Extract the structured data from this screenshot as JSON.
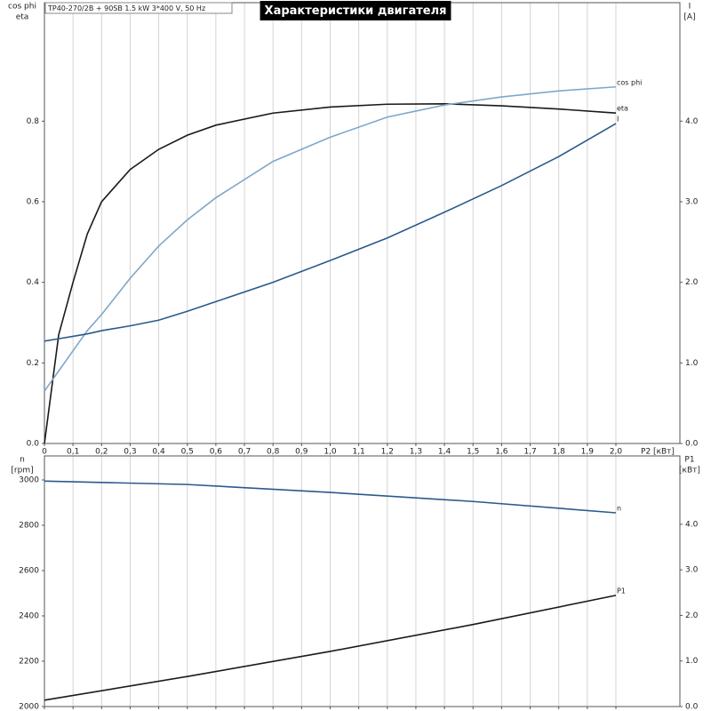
{
  "chart_data": [
    {
      "type": "line",
      "title": "Характеристики двигателя",
      "subtitle": "TP40-270/2B + 90SB   1.5 kW   3*400 V, 50 Hz",
      "xlabel": "P2 [кВт]",
      "ylabel": [
        "cos phi",
        "eta"
      ],
      "y2label": [
        "I",
        "[A]"
      ],
      "x": [
        0,
        0.05,
        0.1,
        0.15,
        0.2,
        0.3,
        0.4,
        0.5,
        0.6,
        0.8,
        1.0,
        1.2,
        1.4,
        1.6,
        1.8,
        2.0
      ],
      "series": [
        {
          "name": "eta",
          "color": "#1a1a1a",
          "values": [
            0,
            0.27,
            0.4,
            0.52,
            0.6,
            0.68,
            0.73,
            0.765,
            0.79,
            0.82,
            0.835,
            0.842,
            0.843,
            0.838,
            0.83,
            0.82
          ]
        },
        {
          "name": "cos phi",
          "color": "#7fa7c9",
          "values": [
            0.13,
            0.18,
            0.23,
            0.28,
            0.32,
            0.41,
            0.49,
            0.555,
            0.61,
            0.7,
            0.76,
            0.81,
            0.84,
            0.86,
            0.875,
            0.885
          ]
        },
        {
          "name": "I",
          "color": "#2a5a8c",
          "axis": "y2",
          "values": [
            1.27,
            1.3,
            1.33,
            1.36,
            1.4,
            1.46,
            1.53,
            1.64,
            1.76,
            2.0,
            2.27,
            2.55,
            2.87,
            3.2,
            3.56,
            3.97
          ]
        }
      ],
      "xlim": [
        0,
        2.224
      ],
      "xticks": [
        0,
        {
          "value": 0.1,
          "label": "0,1"
        },
        {
          "value": 0.2,
          "label": "0,2"
        },
        {
          "value": 0.3,
          "label": "0,3"
        },
        {
          "value": 0.4,
          "label": "0,4"
        },
        {
          "value": 0.5,
          "label": "0,5"
        },
        {
          "value": 0.6,
          "label": "0,6"
        },
        {
          "value": 0.7,
          "label": "0,7"
        },
        {
          "value": 0.8,
          "label": "0,8"
        },
        {
          "value": 0.9,
          "label": "0,9"
        },
        {
          "value": 1.0,
          "label": "1,0"
        },
        {
          "value": 1.1,
          "label": "1,1"
        },
        {
          "value": 1.2,
          "label": "1,2"
        },
        {
          "value": 1.3,
          "label": "1,3"
        },
        {
          "value": 1.4,
          "label": "1,4"
        },
        {
          "value": 1.5,
          "label": "1,5"
        },
        {
          "value": 1.6,
          "label": "1,6"
        },
        {
          "value": 1.7,
          "label": "1,7"
        },
        {
          "value": 1.8,
          "label": "1,8"
        },
        {
          "value": 1.9,
          "label": "1,9"
        },
        {
          "value": 2.0,
          "label": "2,0"
        }
      ],
      "ylim": [
        0,
        1.094
      ],
      "yticks": [
        {
          "value": 0,
          "label": "0.0"
        },
        0.2,
        0.4,
        0.6,
        0.8
      ],
      "y2lim": [
        0,
        5.47
      ],
      "y2ticks": [
        {
          "value": 0,
          "label": "0.0"
        },
        {
          "value": 1,
          "label": "1.0"
        },
        {
          "value": 2,
          "label": "2.0"
        },
        {
          "value": 3,
          "label": "3.0"
        },
        {
          "value": 4,
          "label": "4.0"
        }
      ],
      "grid": true
    },
    {
      "type": "line",
      "ylabel": [
        "n",
        "[rpm]"
      ],
      "y2label": [
        "P1",
        "[кВт]"
      ],
      "x": [
        0,
        0.5,
        1.0,
        1.5,
        2.0
      ],
      "series": [
        {
          "name": "n",
          "color": "#2a5a8c",
          "values": [
            2995,
            2980,
            2945,
            2905,
            2855
          ]
        },
        {
          "name": "P1",
          "color": "#1a1a1a",
          "axis": "y2",
          "values": [
            0.14,
            0.66,
            1.21,
            1.8,
            2.44
          ]
        }
      ],
      "xlim": [
        0,
        2.224
      ],
      "xticks": [
        0,
        0.1,
        0.2,
        0.3,
        0.4,
        0.5,
        0.6,
        0.7,
        0.8,
        0.9,
        1.0,
        1.1,
        1.2,
        1.3,
        1.4,
        1.5,
        1.6,
        1.7,
        1.8,
        1.9,
        2.0
      ],
      "ylim": [
        2000,
        3106
      ],
      "yticks": [
        2000,
        2200,
        2400,
        2600,
        2800,
        3000
      ],
      "y2lim": [
        0,
        5.5
      ],
      "y2ticks": [
        {
          "value": 0,
          "label": "0.0"
        },
        {
          "value": 1,
          "label": "1.0"
        },
        {
          "value": 2,
          "label": "2.0"
        },
        {
          "value": 3,
          "label": "3.0"
        },
        {
          "value": 4,
          "label": "4.0"
        }
      ],
      "grid": true
    }
  ]
}
